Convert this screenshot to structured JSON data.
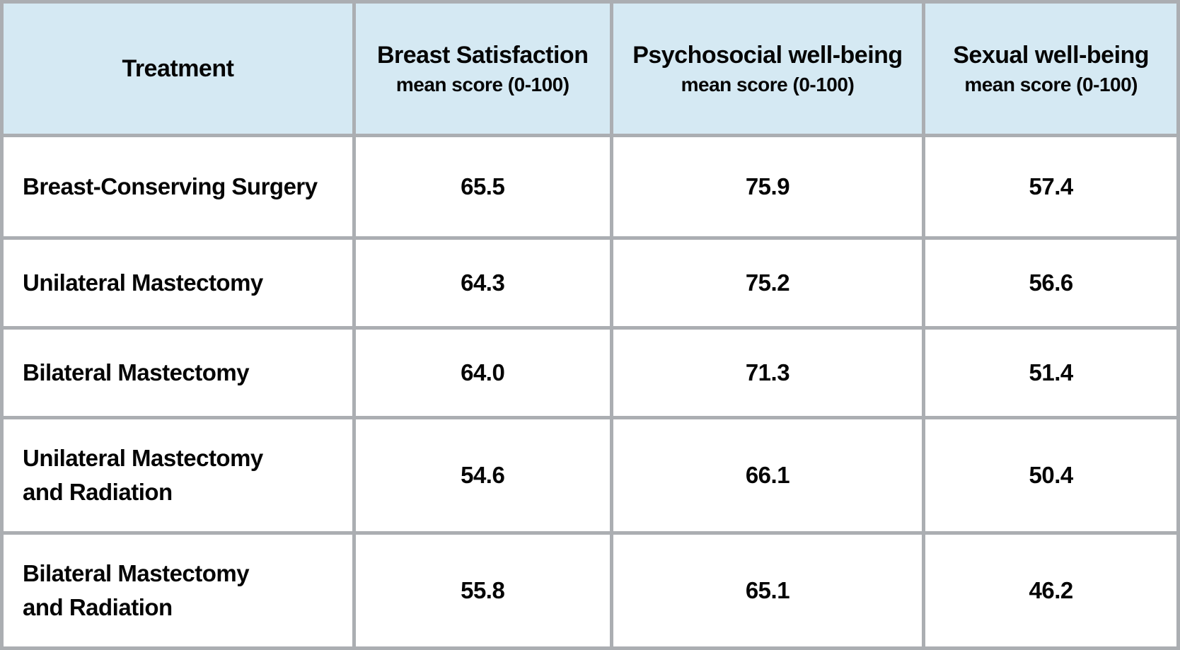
{
  "table": {
    "columns": [
      {
        "label": "Treatment",
        "sublabel": ""
      },
      {
        "label": "Breast Satisfaction",
        "sublabel": "mean score (0-100)"
      },
      {
        "label": "Psychosocial well-being",
        "sublabel": "mean score (0-100)"
      },
      {
        "label": "Sexual well-being",
        "sublabel": "mean score (0-100)"
      }
    ],
    "rows": [
      {
        "treatment": "Breast-Conserving Surgery",
        "values": [
          "65.5",
          "75.9",
          "57.4"
        ]
      },
      {
        "treatment": "Unilateral Mastectomy",
        "values": [
          "64.3",
          "75.2",
          "56.6"
        ]
      },
      {
        "treatment": "Bilateral Mastectomy",
        "values": [
          "64.0",
          "71.3",
          "51.4"
        ]
      },
      {
        "treatment": "Unilateral Mastectomy\nand Radiation",
        "values": [
          "54.6",
          "66.1",
          "50.4"
        ]
      },
      {
        "treatment": "Bilateral Mastectomy\nand Radiation",
        "values": [
          "55.8",
          "65.1",
          "46.2"
        ]
      }
    ]
  },
  "colors": {
    "header_bg": "#d5e9f3",
    "border_gray": "#abaeb2",
    "cell_bg": "#ffffff",
    "text": "#050505"
  },
  "chart_data": {
    "type": "table",
    "title": "",
    "categories": [
      "Breast-Conserving Surgery",
      "Unilateral Mastectomy",
      "Bilateral Mastectomy",
      "Unilateral Mastectomy and Radiation",
      "Bilateral Mastectomy and Radiation"
    ],
    "series": [
      {
        "name": "Breast Satisfaction mean score (0-100)",
        "values": [
          65.5,
          64.3,
          64.0,
          54.6,
          55.8
        ]
      },
      {
        "name": "Psychosocial well-being mean score (0-100)",
        "values": [
          75.9,
          75.2,
          71.3,
          66.1,
          65.1
        ]
      },
      {
        "name": "Sexual well-being mean score (0-100)",
        "values": [
          57.4,
          56.6,
          51.4,
          50.4,
          46.2
        ]
      }
    ],
    "value_range": [
      0,
      100
    ]
  }
}
